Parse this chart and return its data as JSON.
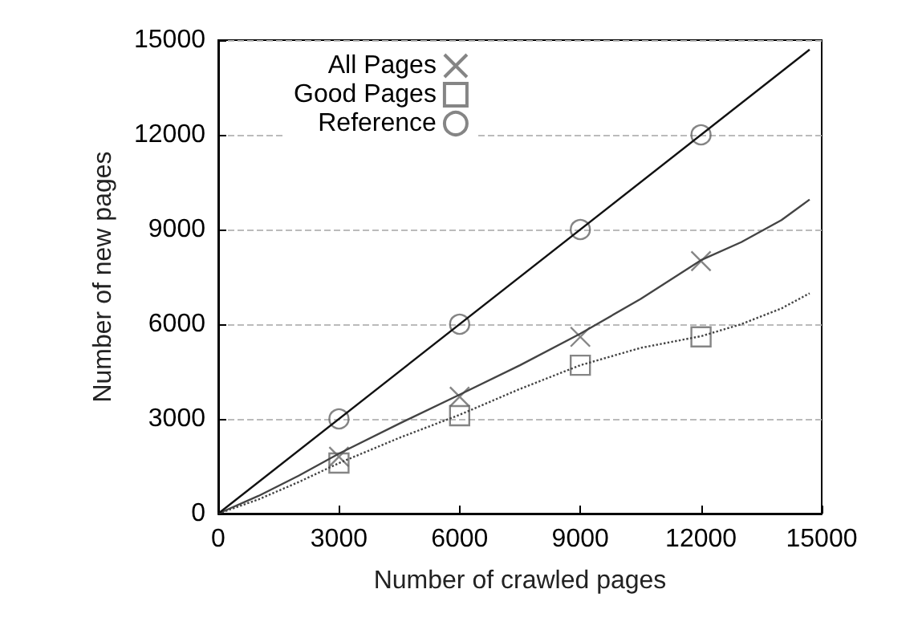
{
  "chart_data": {
    "type": "line",
    "xlabel": "Number of crawled pages",
    "ylabel": "Number of new pages",
    "xlim": [
      0,
      15000
    ],
    "ylim": [
      0,
      15000
    ],
    "xticks": [
      0,
      3000,
      6000,
      9000,
      12000,
      15000
    ],
    "yticks": [
      0,
      3000,
      6000,
      9000,
      12000,
      15000
    ],
    "grid": "y",
    "legend": "top left",
    "series": [
      {
        "name": "All Pages",
        "type": "scatter",
        "marker": "cross",
        "color": "#666666",
        "x": [
          3000,
          6000,
          9000,
          12000
        ],
        "values": [
          1800,
          3700,
          5600,
          8000
        ]
      },
      {
        "name": "Good Pages",
        "type": "scatter",
        "marker": "square",
        "color": "#666666",
        "x": [
          3000,
          6000,
          9000,
          12000
        ],
        "values": [
          1600,
          3100,
          4700,
          5600
        ]
      },
      {
        "name": "Reference",
        "type": "scatter",
        "marker": "circle",
        "color": "#666666",
        "x": [
          3000,
          6000,
          9000,
          12000
        ],
        "values": [
          3000,
          6000,
          9000,
          12000
        ]
      },
      {
        "line_style": "solid",
        "color": "#444444",
        "x": [
          0,
          1000,
          2000,
          3000,
          4500,
          6000,
          7500,
          9000,
          10500,
          12000,
          13000,
          14000,
          14700
        ],
        "values": [
          0,
          560,
          1200,
          1900,
          2850,
          3770,
          4700,
          5700,
          6800,
          8030,
          8600,
          9300,
          9950
        ]
      },
      {
        "line_style": "dotted",
        "color": "#444444",
        "x": [
          0,
          1000,
          2000,
          3000,
          4500,
          6000,
          7500,
          9000,
          10500,
          12000,
          13000,
          14000,
          14700
        ],
        "values": [
          0,
          450,
          1000,
          1600,
          2400,
          3130,
          3950,
          4700,
          5250,
          5620,
          6000,
          6500,
          6980
        ]
      },
      {
        "line_style": "solid",
        "color": "#111111",
        "x": [
          0,
          14700
        ],
        "values": [
          0,
          14700
        ]
      }
    ]
  }
}
